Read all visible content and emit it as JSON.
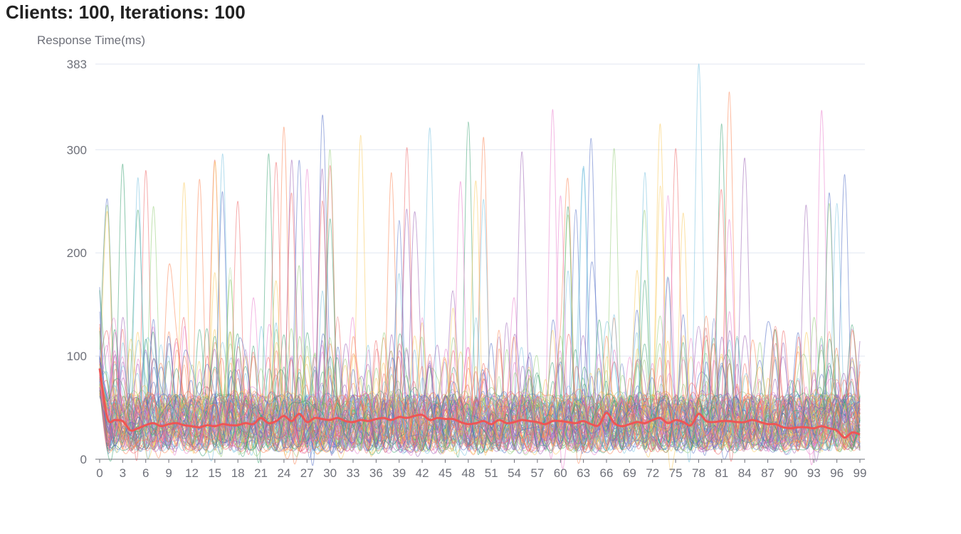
{
  "chart_data": {
    "type": "line",
    "title": "Clients: 100, Iterations: 100",
    "xlabel": "",
    "ylabel": "Response Time(ms)",
    "x_tick_labels": [
      "0",
      "3",
      "6",
      "9",
      "12",
      "15",
      "18",
      "21",
      "24",
      "27",
      "30",
      "33",
      "36",
      "39",
      "42",
      "45",
      "48",
      "51",
      "54",
      "57",
      "60",
      "63",
      "66",
      "69",
      "72",
      "75",
      "78",
      "81",
      "84",
      "87",
      "90",
      "93",
      "96",
      "99"
    ],
    "y_tick_labels": [
      "0",
      "100",
      "200",
      "300",
      "383"
    ],
    "xlim": [
      0,
      99
    ],
    "ylim": [
      0,
      383
    ],
    "grid": true,
    "legend": "none",
    "client_count": 100,
    "iterations": 100,
    "series": [
      {
        "role": "average",
        "color": "#ee5555",
        "x": [
          0,
          1,
          2,
          3,
          4,
          5,
          6,
          7,
          8,
          9,
          10,
          11,
          12,
          13,
          14,
          15,
          16,
          17,
          18,
          19,
          20,
          21,
          22,
          23,
          24,
          25,
          26,
          27,
          28,
          29,
          30,
          31,
          32,
          33,
          34,
          35,
          36,
          37,
          38,
          39,
          40,
          41,
          42,
          43,
          44,
          45,
          46,
          47,
          48,
          49,
          50,
          51,
          52,
          53,
          54,
          55,
          56,
          57,
          58,
          59,
          60,
          61,
          62,
          63,
          64,
          65,
          66,
          67,
          68,
          69,
          70,
          71,
          72,
          73,
          74,
          75,
          76,
          77,
          78,
          79,
          80,
          81,
          82,
          83,
          84,
          85,
          86,
          87,
          88,
          89,
          90,
          91,
          92,
          93,
          94,
          95,
          96,
          97,
          98,
          99
        ],
        "values": [
          88,
          40,
          38,
          37,
          28,
          30,
          33,
          35,
          32,
          34,
          35,
          33,
          32,
          31,
          33,
          32,
          34,
          33,
          33,
          35,
          34,
          40,
          35,
          37,
          42,
          37,
          44,
          36,
          40,
          39,
          38,
          40,
          37,
          36,
          38,
          37,
          39,
          40,
          38,
          41,
          40,
          42,
          43,
          38,
          40,
          39,
          39,
          36,
          34,
          35,
          37,
          34,
          38,
          35,
          36,
          38,
          37,
          36,
          34,
          37,
          37,
          36,
          35,
          37,
          34,
          33,
          45,
          35,
          32,
          34,
          36,
          35,
          38,
          40,
          35,
          38,
          36,
          33,
          44,
          37,
          36,
          37,
          37,
          36,
          36,
          38,
          36,
          34,
          34,
          31,
          30,
          31,
          31,
          30,
          32,
          30,
          28,
          21,
          26,
          24
        ]
      }
    ],
    "client_series_colors": [
      "#5470c6",
      "#91cc75",
      "#fac858",
      "#ee6666",
      "#73c0de",
      "#3ba272",
      "#fc8452",
      "#9a60b4",
      "#ea7ccc"
    ],
    "client_series_summary": {
      "count": 100,
      "typical_range": [
        5,
        100
      ],
      "initial_spike_x": 1,
      "initial_spike_value": 252,
      "peaks": [
        {
          "x": 1,
          "value": 252
        },
        {
          "x": 7,
          "value": 245
        },
        {
          "x": 11,
          "value": 268
        },
        {
          "x": 15,
          "value": 290
        },
        {
          "x": 16,
          "value": 296
        },
        {
          "x": 22,
          "value": 296
        },
        {
          "x": 24,
          "value": 322
        },
        {
          "x": 25,
          "value": 290
        },
        {
          "x": 27,
          "value": 281
        },
        {
          "x": 29,
          "value": 333
        },
        {
          "x": 30,
          "value": 300
        },
        {
          "x": 34,
          "value": 314
        },
        {
          "x": 40,
          "value": 302
        },
        {
          "x": 43,
          "value": 321
        },
        {
          "x": 48,
          "value": 327
        },
        {
          "x": 50,
          "value": 312
        },
        {
          "x": 55,
          "value": 298
        },
        {
          "x": 59,
          "value": 339
        },
        {
          "x": 64,
          "value": 311
        },
        {
          "x": 67,
          "value": 301
        },
        {
          "x": 73,
          "value": 325
        },
        {
          "x": 75,
          "value": 301
        },
        {
          "x": 78,
          "value": 383
        },
        {
          "x": 81,
          "value": 325
        },
        {
          "x": 82,
          "value": 356
        },
        {
          "x": 84,
          "value": 292
        },
        {
          "x": 94,
          "value": 338
        },
        {
          "x": 97,
          "value": 276
        }
      ]
    }
  }
}
